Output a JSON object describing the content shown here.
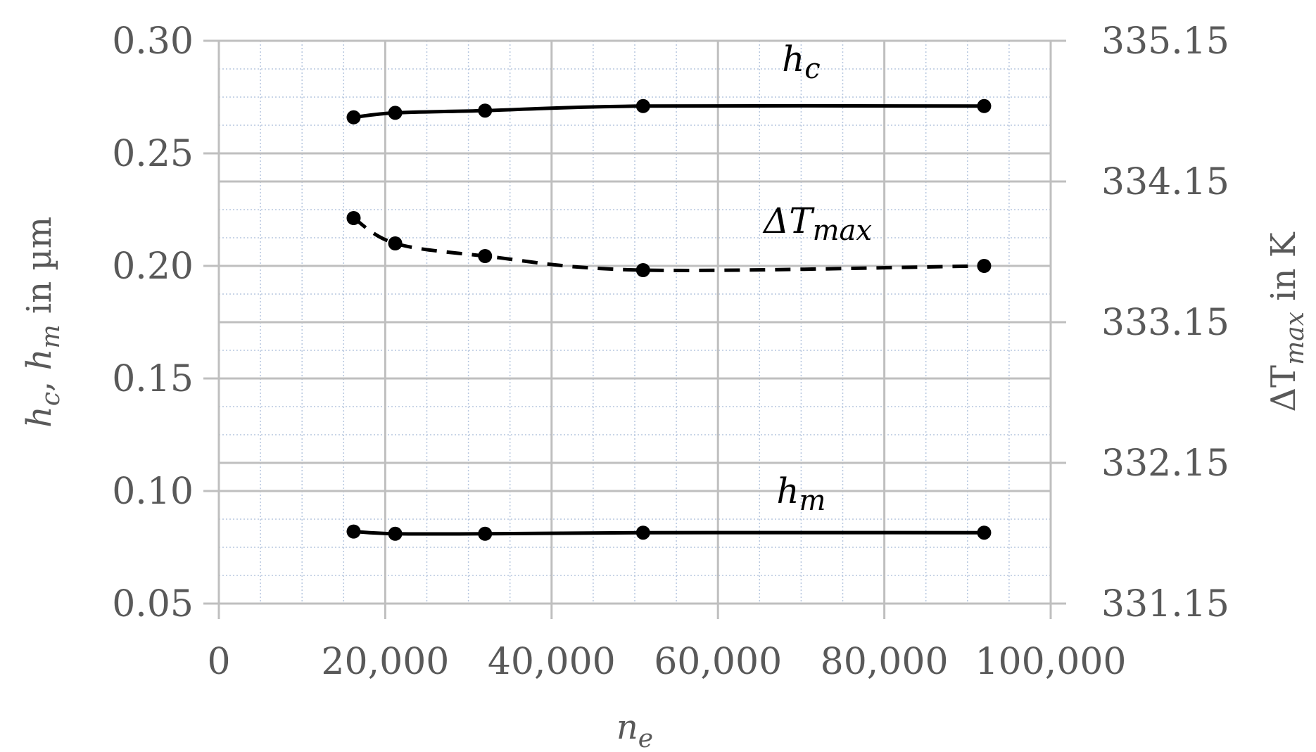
{
  "chart_data": {
    "type": "line",
    "x_label": {
      "main": "n",
      "sub": "e"
    },
    "y_left_label": {
      "p1": "h",
      "s1": "c",
      "sep": ", ",
      "p2": "h",
      "s2": "m",
      "tail": " in µm"
    },
    "y_right_label": {
      "pre": "ΔT",
      "sub": "max",
      "tail": " in K"
    },
    "x_ticks": [
      {
        "value": 0,
        "label": "0"
      },
      {
        "value": 20000,
        "label": "20,000"
      },
      {
        "value": 40000,
        "label": "40,000"
      },
      {
        "value": 60000,
        "label": "60,000"
      },
      {
        "value": 80000,
        "label": "80,000"
      },
      {
        "value": 100000,
        "label": "100,000"
      }
    ],
    "y_left_ticks": [
      {
        "value": 0.05,
        "label": "0.05"
      },
      {
        "value": 0.1,
        "label": "0.10"
      },
      {
        "value": 0.15,
        "label": "0.15"
      },
      {
        "value": 0.2,
        "label": "0.20"
      },
      {
        "value": 0.25,
        "label": "0.25"
      },
      {
        "value": 0.3,
        "label": "0.30"
      }
    ],
    "y_right_ticks": [
      {
        "value": 331.15,
        "label": "331.15"
      },
      {
        "value": 332.15,
        "label": "332.15"
      },
      {
        "value": 333.15,
        "label": "333.15"
      },
      {
        "value": 334.15,
        "label": "334.15"
      },
      {
        "value": 335.15,
        "label": "335.15"
      }
    ],
    "xlim": [
      0,
      100000
    ],
    "ylim_left": [
      0.05,
      0.3
    ],
    "ylim_right": [
      331.15,
      335.15
    ],
    "grid": true,
    "series": [
      {
        "label": {
          "main": "h",
          "sub": "c"
        },
        "axis": "left",
        "dash": "solid",
        "x": [
          16200,
          21200,
          32000,
          51000,
          92000
        ],
        "y": [
          0.266,
          0.268,
          0.269,
          0.271,
          0.271
        ]
      },
      {
        "label": {
          "main": "ΔT",
          "sub": "max"
        },
        "axis": "right",
        "dash": "dashed",
        "x": [
          16200,
          21200,
          32000,
          51000,
          92000
        ],
        "y": [
          333.89,
          333.71,
          333.62,
          333.52,
          333.55
        ]
      },
      {
        "label": {
          "main": "h",
          "sub": "m"
        },
        "axis": "left",
        "dash": "solid",
        "x": [
          16200,
          21200,
          32000,
          51000,
          92000
        ],
        "y": [
          0.082,
          0.081,
          0.081,
          0.0815,
          0.0815
        ]
      }
    ]
  }
}
